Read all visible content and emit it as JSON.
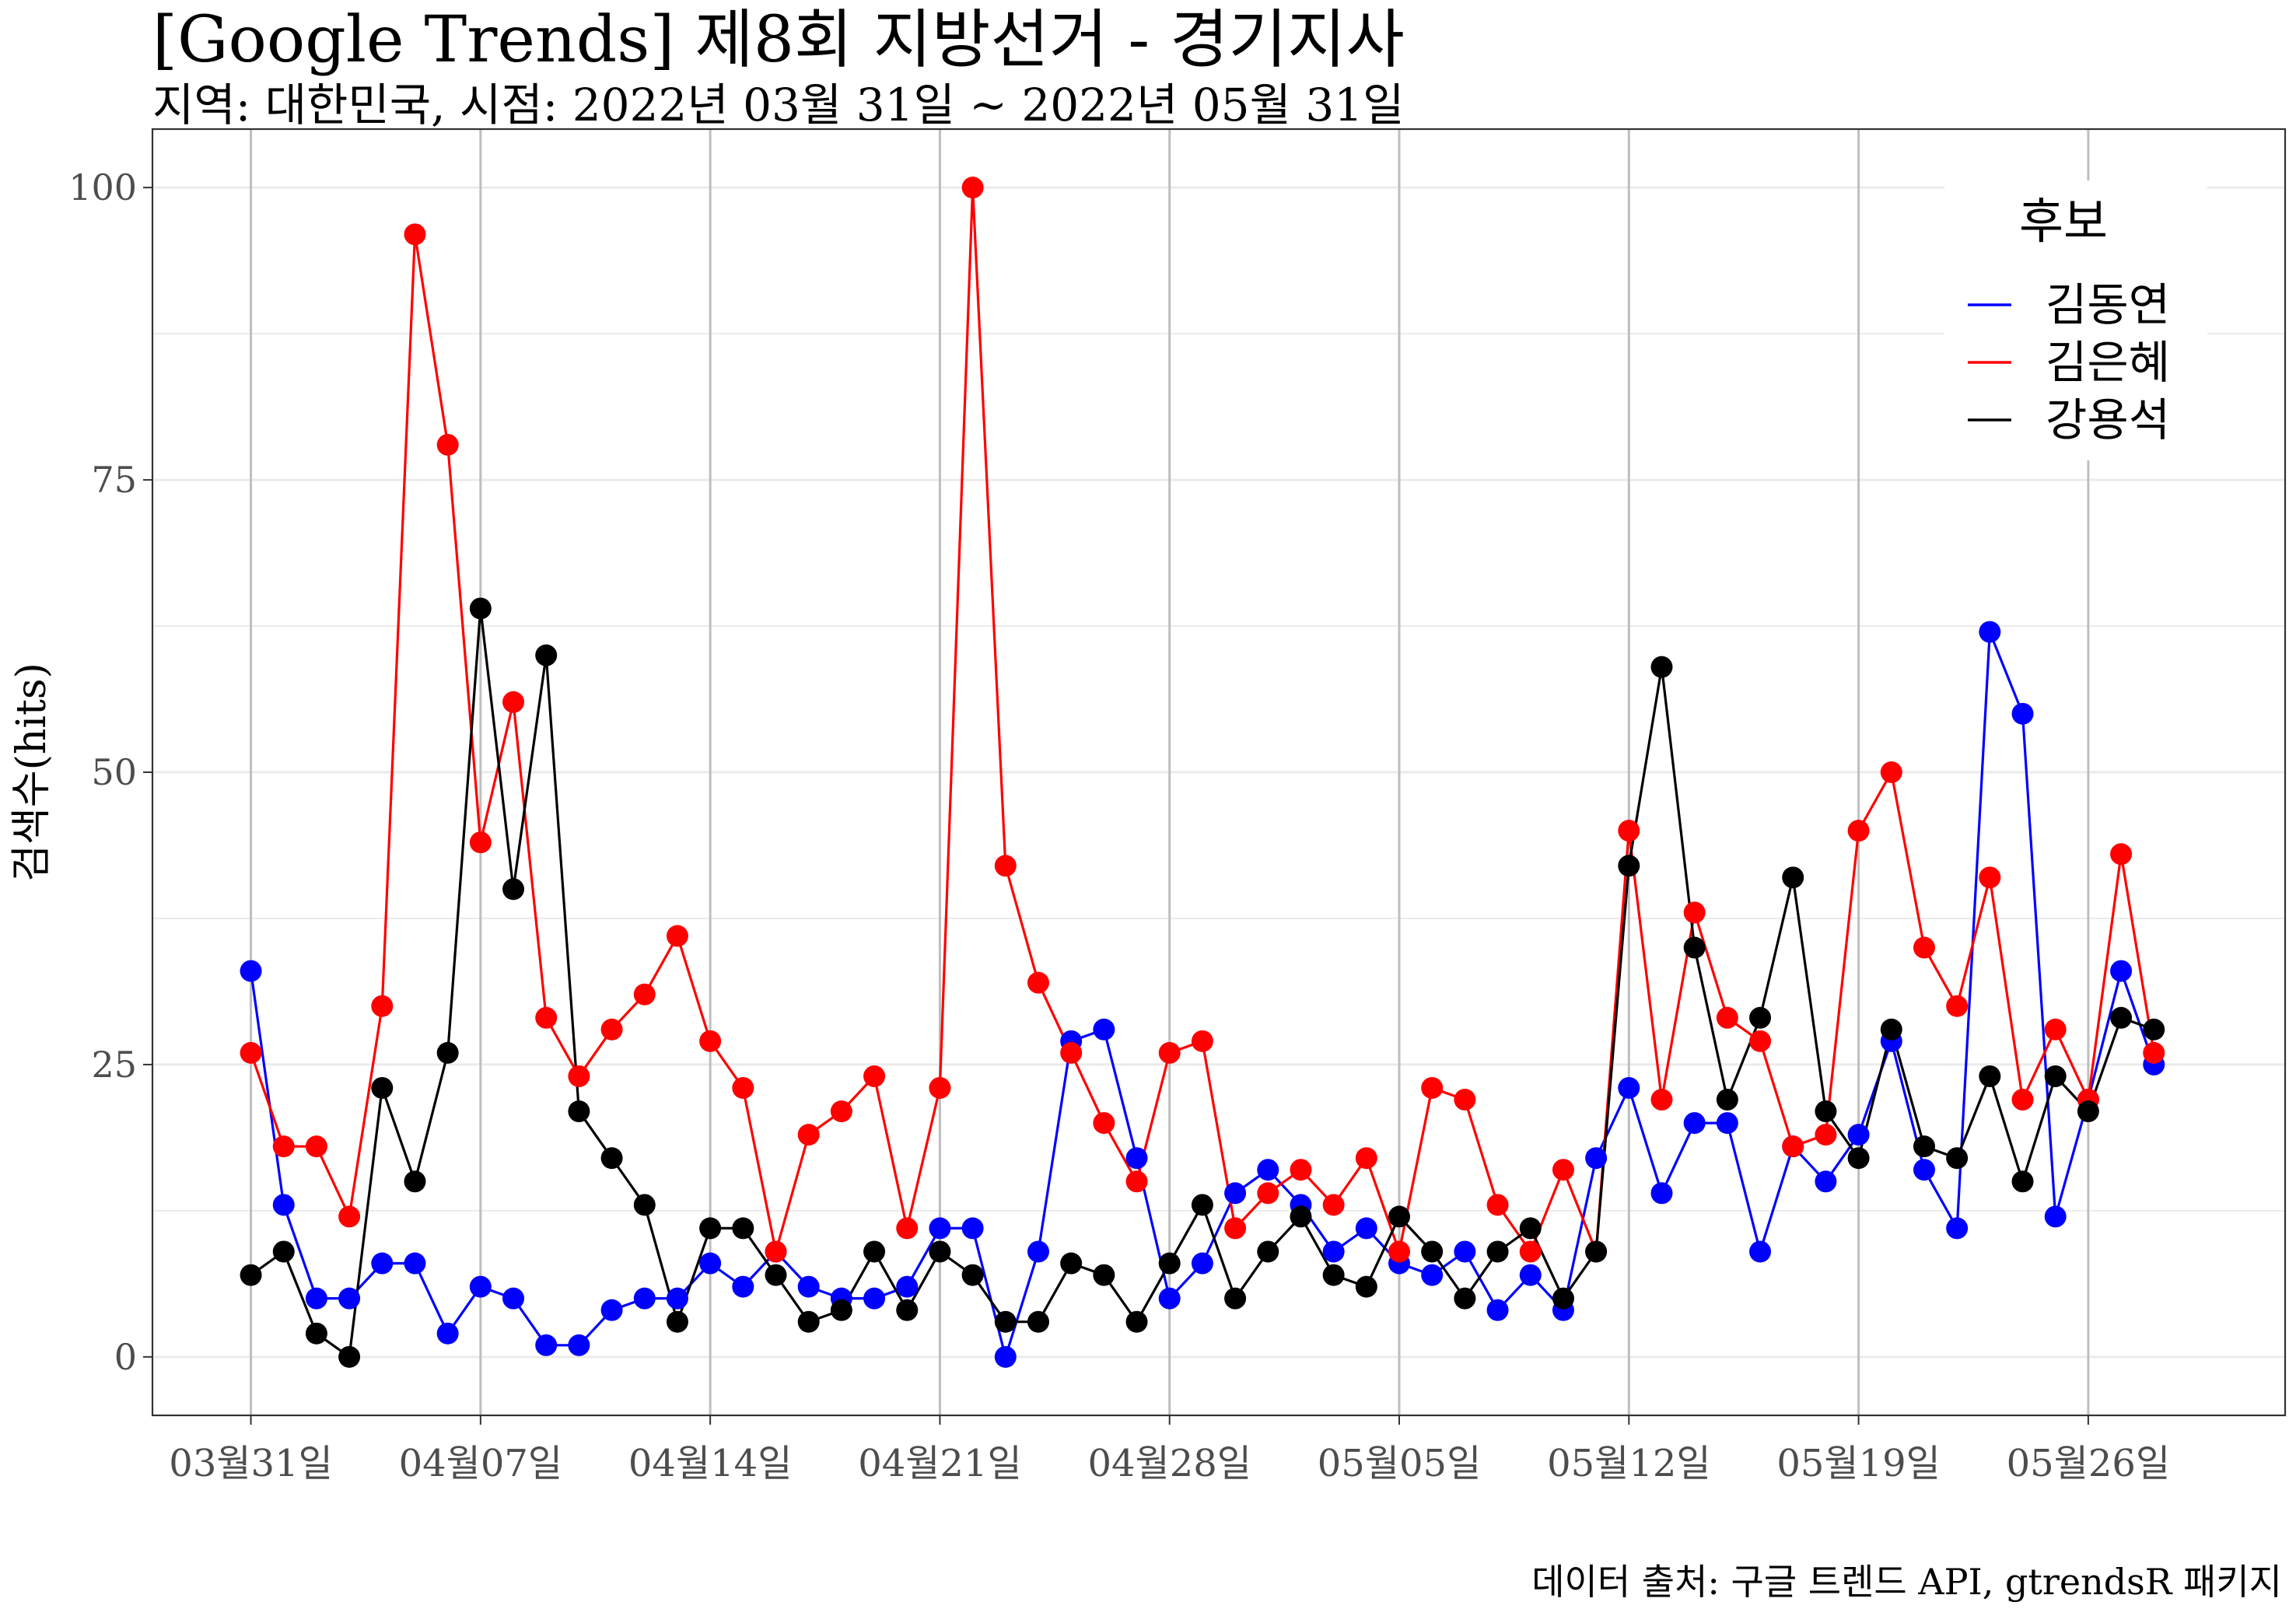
{
  "chart_data": {
    "type": "line",
    "title": "[Google Trends] 제8회 지방선거 - 경기지사",
    "subtitle": "지역: 대한민국, 시점: 2022년 03월 31일 ~ 2022년 05월 31일",
    "caption": "데이터 출처: 구글 트렌드 API, gtrendsR 패키지",
    "xlabel": "",
    "ylabel": "검색수(hits)",
    "ylim": [
      -5,
      105
    ],
    "yticks": [
      "0",
      "25",
      "50",
      "75",
      "100"
    ],
    "x_start": "2022-03-31",
    "xlim": [
      "2022-03-28",
      "2022-06-01"
    ],
    "xticks": [
      {
        "date": "2022-03-31",
        "label": "03월31일"
      },
      {
        "date": "2022-04-07",
        "label": "04월07일"
      },
      {
        "date": "2022-04-14",
        "label": "04월14일"
      },
      {
        "date": "2022-04-21",
        "label": "04월21일"
      },
      {
        "date": "2022-04-28",
        "label": "04월28일"
      },
      {
        "date": "2022-05-05",
        "label": "05월05일"
      },
      {
        "date": "2022-05-12",
        "label": "05월12일"
      },
      {
        "date": "2022-05-19",
        "label": "05월19일"
      },
      {
        "date": "2022-05-26",
        "label": "05월26일"
      }
    ],
    "grid": true,
    "legend": {
      "title": "후보",
      "placement": "top-right"
    },
    "series": [
      {
        "name": "김동연",
        "color": "#0000ff",
        "values": [
          33,
          13,
          5,
          5,
          8,
          8,
          2,
          6,
          5,
          1,
          1,
          4,
          5,
          5,
          8,
          6,
          9,
          6,
          5,
          5,
          6,
          11,
          11,
          0,
          9,
          27,
          28,
          17,
          5,
          8,
          14,
          16,
          13,
          9,
          11,
          8,
          7,
          9,
          4,
          7,
          4,
          17,
          23,
          14,
          20,
          20,
          9,
          18,
          15,
          19,
          27,
          16,
          11,
          62,
          55,
          12,
          22,
          33,
          25
        ]
      },
      {
        "name": "김은혜",
        "color": "#ff0000",
        "values": [
          26,
          18,
          18,
          12,
          30,
          96,
          78,
          44,
          56,
          29,
          24,
          28,
          31,
          36,
          27,
          23,
          9,
          19,
          21,
          24,
          11,
          23,
          100,
          42,
          32,
          26,
          20,
          15,
          26,
          27,
          11,
          14,
          16,
          13,
          17,
          9,
          23,
          22,
          13,
          9,
          16,
          9,
          45,
          22,
          38,
          29,
          27,
          18,
          19,
          45,
          50,
          35,
          30,
          41,
          22,
          28,
          22,
          43,
          26
        ]
      },
      {
        "name": "강용석",
        "color": "#000000",
        "values": [
          7,
          9,
          2,
          0,
          23,
          15,
          26,
          64,
          40,
          60,
          21,
          17,
          13,
          3,
          11,
          11,
          7,
          3,
          4,
          9,
          4,
          9,
          7,
          3,
          3,
          8,
          7,
          3,
          8,
          13,
          5,
          9,
          12,
          7,
          6,
          12,
          9,
          5,
          9,
          11,
          5,
          9,
          42,
          59,
          35,
          22,
          29,
          41,
          21,
          17,
          28,
          18,
          17,
          24,
          15,
          24,
          21,
          29,
          28
        ]
      }
    ]
  }
}
